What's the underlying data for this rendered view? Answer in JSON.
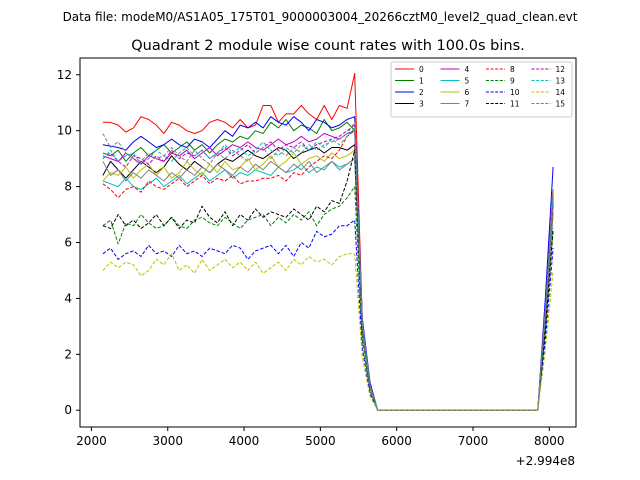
{
  "chart_data": {
    "type": "line",
    "suptitle": "Data file: modeM0/AS1A05_175T01_9000003004_20266cztM0_level2_quad_clean.evt",
    "title": "Quadrant 2 module wise count rates with 100.0s bins.",
    "xlabel": "",
    "ylabel": "",
    "x_offset_label": "+2.994e8",
    "xlim": [
      1850,
      8350
    ],
    "ylim": [
      -0.6,
      12.6
    ],
    "xticks": [
      2000,
      3000,
      4000,
      5000,
      6000,
      7000,
      8000
    ],
    "yticks": [
      0,
      2,
      4,
      6,
      8,
      10,
      12
    ],
    "grid": false,
    "legend": {
      "position": "top-right",
      "columns": 4
    },
    "x": [
      2150,
      2250,
      2350,
      2450,
      2550,
      2650,
      2750,
      2850,
      2950,
      3050,
      3150,
      3250,
      3350,
      3450,
      3550,
      3650,
      3750,
      3850,
      3950,
      4050,
      4150,
      4250,
      4350,
      4450,
      4550,
      4650,
      4750,
      4850,
      4950,
      5050,
      5150,
      5250,
      5350,
      5450,
      5550,
      5650,
      5750,
      7850,
      7950,
      8050
    ],
    "series": [
      {
        "name": "0",
        "color": "#ff0000",
        "dashed": false,
        "values": [
          10.3,
          10.3,
          10.2,
          9.95,
          10.1,
          10.5,
          10.4,
          10.2,
          9.9,
          10.3,
          10.2,
          10.0,
          9.9,
          10.0,
          10.3,
          10.4,
          10.3,
          10.1,
          10.4,
          10.1,
          10.2,
          10.9,
          10.9,
          10.3,
          10.6,
          10.6,
          10.9,
          10.6,
          10.4,
          10.9,
          10.4,
          10.9,
          10.8,
          12.05,
          3.2,
          1.0,
          0.0,
          0.0,
          3.8,
          7.9
        ]
      },
      {
        "name": "1",
        "color": "#008000",
        "dashed": false,
        "values": [
          9.2,
          9.1,
          9.3,
          8.9,
          9.2,
          9.4,
          9.1,
          9.3,
          9.5,
          9.2,
          9.4,
          9.6,
          9.3,
          9.5,
          9.2,
          9.5,
          9.7,
          9.6,
          9.8,
          9.7,
          10.0,
          9.9,
          10.3,
          10.1,
          10.4,
          10.0,
          10.2,
          10.1,
          9.9,
          10.4,
          10.0,
          10.1,
          10.3,
          10.0,
          3.0,
          0.9,
          0.0,
          0.0,
          3.6,
          7.7
        ]
      },
      {
        "name": "2",
        "color": "#0000ff",
        "dashed": false,
        "values": [
          9.5,
          9.45,
          9.4,
          9.3,
          9.6,
          9.8,
          9.6,
          9.4,
          9.5,
          9.7,
          9.5,
          9.4,
          9.7,
          9.6,
          9.4,
          9.7,
          10.0,
          9.8,
          10.2,
          10.1,
          10.3,
          10.1,
          10.5,
          10.3,
          10.2,
          10.5,
          10.3,
          10.0,
          10.4,
          10.3,
          10.1,
          10.2,
          10.4,
          10.5,
          3.3,
          1.0,
          0.0,
          0.0,
          4.1,
          8.7
        ]
      },
      {
        "name": "3",
        "color": "#000000",
        "dashed": false,
        "values": [
          8.4,
          8.9,
          8.6,
          8.3,
          8.6,
          8.9,
          8.7,
          8.5,
          8.7,
          9.1,
          8.8,
          8.6,
          8.9,
          8.7,
          8.5,
          8.8,
          9.0,
          8.9,
          9.1,
          9.3,
          9.1,
          9.0,
          9.2,
          9.4,
          9.3,
          9.0,
          9.2,
          9.3,
          9.4,
          9.2,
          9.4,
          9.4,
          9.3,
          9.5,
          2.9,
          0.8,
          0.0,
          0.0,
          3.4,
          7.4
        ]
      },
      {
        "name": "4",
        "color": "#bf00bf",
        "dashed": false,
        "values": [
          9.1,
          9.0,
          8.9,
          9.2,
          9.0,
          8.8,
          9.1,
          9.0,
          8.9,
          9.2,
          9.1,
          9.3,
          9.0,
          9.2,
          9.4,
          9.1,
          9.3,
          9.5,
          9.4,
          9.6,
          9.4,
          9.3,
          9.5,
          9.7,
          9.5,
          9.6,
          9.8,
          9.6,
          9.7,
          9.9,
          9.8,
          9.7,
          9.9,
          10.0,
          3.1,
          0.9,
          0.0,
          0.0,
          3.7,
          7.6
        ]
      },
      {
        "name": "5",
        "color": "#00bfbf",
        "dashed": false,
        "values": [
          8.2,
          8.1,
          8.0,
          8.3,
          8.0,
          7.9,
          8.1,
          8.3,
          8.0,
          8.2,
          8.4,
          8.1,
          8.3,
          8.5,
          8.2,
          8.4,
          8.6,
          8.3,
          8.5,
          8.4,
          8.6,
          8.5,
          8.4,
          8.7,
          8.5,
          8.6,
          8.8,
          8.5,
          8.7,
          8.6,
          8.9,
          8.7,
          8.8,
          9.0,
          2.7,
          0.8,
          0.0,
          0.0,
          3.2,
          7.0
        ]
      },
      {
        "name": "6",
        "color": "#bfbf00",
        "dashed": false,
        "values": [
          8.2,
          8.5,
          8.4,
          8.7,
          8.3,
          8.6,
          8.8,
          8.4,
          8.7,
          8.3,
          8.5,
          8.9,
          8.6,
          8.4,
          8.8,
          8.5,
          8.9,
          8.6,
          8.7,
          9.0,
          8.6,
          8.8,
          9.1,
          8.7,
          8.9,
          9.2,
          8.8,
          9.0,
          9.1,
          8.9,
          9.2,
          9.0,
          9.1,
          9.3,
          2.8,
          0.8,
          0.0,
          0.0,
          3.3,
          7.2
        ]
      },
      {
        "name": "7",
        "color": "#808080",
        "dashed": false,
        "values": [
          8.9,
          8.4,
          8.6,
          8.2,
          8.5,
          8.3,
          8.6,
          8.4,
          8.2,
          8.5,
          8.3,
          8.6,
          8.4,
          8.7,
          8.5,
          8.8,
          8.6,
          8.4,
          8.7,
          8.5,
          8.8,
          8.6,
          8.9,
          8.7,
          8.5,
          8.8,
          8.6,
          8.9,
          8.5,
          8.7,
          8.9,
          8.6,
          8.8,
          9.0,
          2.8,
          0.8,
          0.0,
          0.0,
          3.3,
          7.1
        ]
      },
      {
        "name": "8",
        "color": "#ff0000",
        "dashed": true,
        "values": [
          8.1,
          7.9,
          7.6,
          7.9,
          8.0,
          7.8,
          8.2,
          8.0,
          7.9,
          8.1,
          8.3,
          8.0,
          8.2,
          8.4,
          8.1,
          8.3,
          8.2,
          8.4,
          8.1,
          8.2,
          8.2,
          8.3,
          8.3,
          8.4,
          8.2,
          8.5,
          8.4,
          8.7,
          8.9,
          9.1,
          9.0,
          9.3,
          9.8,
          10.0,
          3.1,
          0.9,
          0.0,
          0.0,
          3.5,
          7.5
        ]
      },
      {
        "name": "9",
        "color": "#008000",
        "dashed": true,
        "values": [
          6.6,
          6.8,
          5.95,
          6.7,
          6.6,
          7.0,
          6.7,
          6.5,
          6.6,
          6.9,
          6.6,
          6.5,
          6.8,
          6.9,
          6.7,
          6.6,
          6.9,
          6.7,
          6.5,
          6.8,
          6.9,
          7.0,
          6.6,
          6.9,
          6.7,
          7.0,
          6.8,
          7.1,
          6.6,
          7.0,
          7.2,
          7.3,
          7.6,
          8.0,
          2.5,
          0.7,
          0.0,
          0.0,
          2.9,
          6.4
        ]
      },
      {
        "name": "10",
        "color": "#0000ff",
        "dashed": true,
        "values": [
          5.6,
          5.8,
          5.4,
          5.6,
          5.7,
          5.5,
          5.9,
          5.6,
          5.7,
          5.5,
          5.9,
          5.6,
          5.7,
          5.5,
          5.8,
          5.7,
          5.6,
          5.9,
          5.8,
          5.4,
          5.7,
          5.8,
          5.9,
          5.6,
          5.9,
          5.5,
          6.0,
          5.8,
          6.4,
          6.2,
          6.3,
          6.6,
          6.6,
          6.8,
          2.2,
          0.6,
          0.0,
          0.0,
          2.6,
          5.8
        ]
      },
      {
        "name": "11",
        "color": "#000000",
        "dashed": true,
        "values": [
          6.6,
          6.5,
          7.0,
          6.6,
          6.8,
          6.5,
          6.7,
          7.0,
          6.6,
          6.9,
          6.5,
          6.8,
          6.7,
          7.3,
          6.9,
          6.7,
          7.1,
          6.6,
          7.0,
          6.8,
          7.2,
          6.9,
          7.1,
          7.0,
          6.9,
          7.2,
          7.0,
          6.8,
          7.3,
          7.1,
          7.5,
          7.4,
          8.2,
          9.3,
          3.0,
          0.9,
          0.0,
          0.0,
          3.0,
          6.5
        ]
      },
      {
        "name": "12",
        "color": "#bf00bf",
        "dashed": true,
        "values": [
          9.0,
          9.2,
          8.9,
          8.7,
          9.1,
          9.0,
          8.8,
          9.1,
          8.9,
          9.3,
          9.0,
          9.2,
          9.1,
          9.3,
          9.0,
          9.2,
          9.4,
          9.1,
          9.3,
          9.5,
          9.2,
          9.4,
          9.6,
          9.3,
          9.5,
          9.4,
          9.6,
          9.3,
          9.5,
          9.6,
          9.7,
          9.8,
          10.0,
          10.2,
          3.2,
          0.9,
          0.0,
          0.0,
          3.6,
          7.8
        ]
      },
      {
        "name": "13",
        "color": "#00bfbf",
        "dashed": true,
        "values": [
          9.0,
          9.3,
          8.9,
          9.1,
          9.2,
          8.8,
          9.0,
          9.3,
          9.1,
          8.9,
          9.2,
          9.4,
          9.1,
          9.3,
          9.0,
          9.2,
          9.5,
          9.2,
          9.4,
          9.1,
          9.3,
          9.6,
          9.3,
          9.1,
          9.4,
          9.2,
          9.5,
          9.3,
          9.6,
          9.4,
          9.7,
          9.5,
          9.8,
          10.1,
          3.1,
          0.9,
          0.0,
          0.0,
          3.5,
          7.7
        ]
      },
      {
        "name": "14",
        "color": "#bfbf00",
        "dashed": true,
        "values": [
          5.0,
          5.3,
          5.1,
          5.3,
          5.2,
          4.8,
          5.0,
          5.4,
          5.2,
          5.6,
          5.0,
          5.2,
          4.9,
          5.4,
          5.0,
          5.2,
          5.4,
          5.1,
          5.3,
          5.0,
          5.3,
          4.9,
          5.1,
          5.3,
          5.0,
          5.4,
          5.2,
          5.5,
          5.3,
          5.4,
          5.2,
          5.5,
          5.6,
          5.6,
          1.9,
          0.5,
          0.0,
          0.0,
          2.2,
          5.0
        ]
      },
      {
        "name": "15",
        "color": "#808080",
        "dashed": true,
        "values": [
          9.9,
          9.4,
          9.6,
          9.2,
          9.0,
          8.9,
          9.2,
          9.0,
          9.1,
          9.4,
          9.1,
          8.9,
          9.3,
          9.0,
          8.8,
          9.2,
          9.0,
          9.3,
          9.1,
          8.9,
          9.2,
          9.4,
          9.0,
          9.3,
          9.1,
          9.4,
          9.2,
          9.5,
          9.3,
          9.5,
          9.6,
          9.7,
          9.9,
          10.3,
          3.1,
          0.9,
          0.0,
          0.0,
          3.7,
          7.9
        ]
      }
    ]
  }
}
